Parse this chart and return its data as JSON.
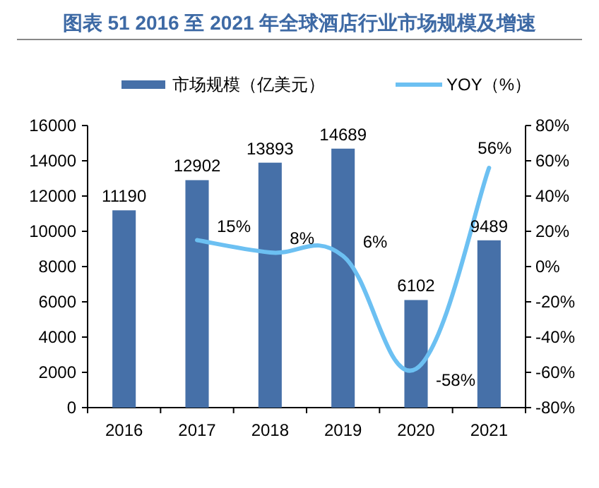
{
  "chart_data": {
    "type": "bar",
    "title": "图表 51 2016 至 2021 年全球酒店行业市场规模及增速",
    "categories": [
      "2016",
      "2017",
      "2018",
      "2019",
      "2020",
      "2021"
    ],
    "series": [
      {
        "name": "市场规模（亿美元）",
        "color": "#4670a8",
        "values": [
          11190,
          12902,
          13893,
          14689,
          6102,
          9489
        ],
        "value_labels": [
          "11190",
          "12902",
          "13893",
          "14689",
          "6102",
          "9489"
        ]
      },
      {
        "name": "YOY（%）",
        "type": "line",
        "axis": "y2",
        "color": "#6cc0f2",
        "values": [
          null,
          15,
          8,
          6,
          -58,
          56
        ],
        "value_labels": [
          null,
          "15%",
          "8%",
          "6%",
          "-58%",
          "56%"
        ]
      }
    ],
    "ylim": [
      0,
      16000
    ],
    "yticks": [
      0,
      2000,
      4000,
      6000,
      8000,
      10000,
      12000,
      14000,
      16000
    ],
    "y2lim": [
      -80,
      80
    ],
    "y2ticks": [
      {
        "value": -80,
        "label": "-80%"
      },
      {
        "value": -60,
        "label": "-60%"
      },
      {
        "value": -40,
        "label": "-40%"
      },
      {
        "value": -20,
        "label": "-20%"
      },
      {
        "value": 0,
        "label": "0%"
      },
      {
        "value": 20,
        "label": "20%"
      },
      {
        "value": 40,
        "label": "40%"
      },
      {
        "value": 60,
        "label": "60%"
      },
      {
        "value": 80,
        "label": "80%"
      }
    ],
    "legend": "top"
  }
}
